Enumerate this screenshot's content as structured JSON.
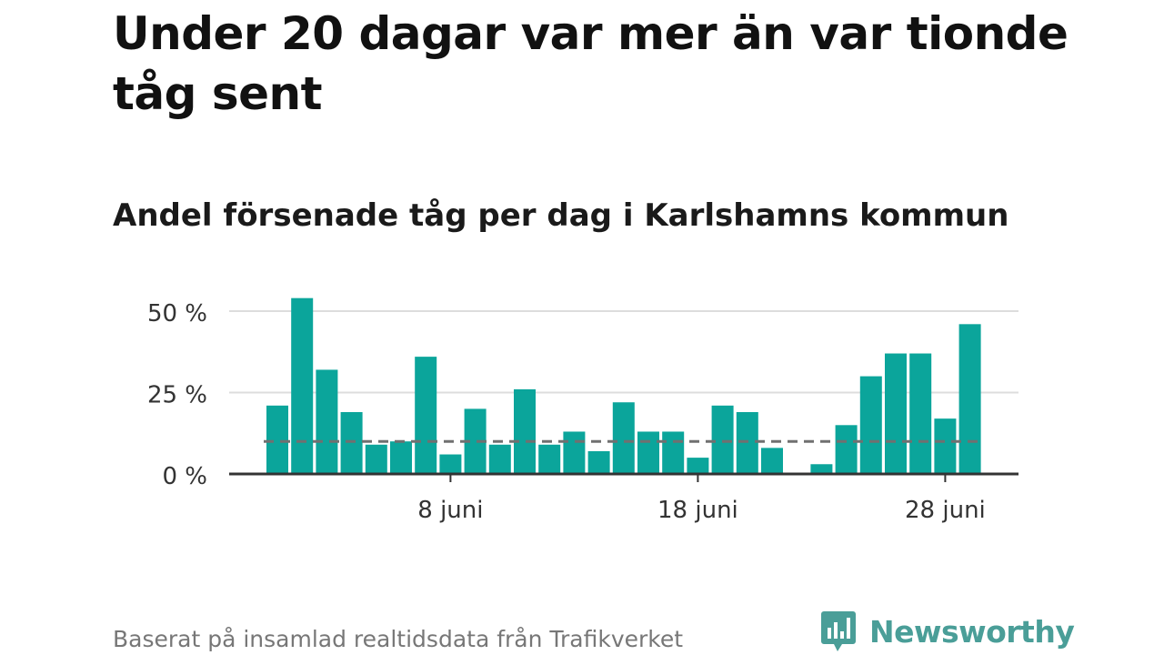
{
  "title": "Under 20 dagar var mer än var tionde tåg sent",
  "subtitle": "Andel försenade tåg per dag i Karlshamns kommun",
  "footer": "Baserat på insamlad realtidsdata från Trafikverket",
  "brand": {
    "name": "Newsworthy",
    "logo_icon": "bar-chart-speech-bubble-icon"
  },
  "colors": {
    "bar": "#0ba59b",
    "reference_line": "#707070",
    "gridline": "#dddddd",
    "axis": "#333333",
    "brand": "#4a9e98"
  },
  "chart_data": {
    "type": "bar",
    "x_unit": "day of June",
    "x": [
      1,
      2,
      3,
      4,
      5,
      6,
      7,
      8,
      9,
      10,
      11,
      12,
      13,
      14,
      15,
      16,
      17,
      18,
      19,
      20,
      21,
      22,
      23,
      24,
      25,
      26,
      27,
      28,
      29
    ],
    "values": [
      21,
      54,
      32,
      19,
      9,
      10,
      36,
      6,
      20,
      9,
      26,
      9,
      13,
      7,
      22,
      13,
      13,
      5,
      21,
      19,
      8,
      null,
      3,
      15,
      30,
      37,
      37,
      17,
      46
    ],
    "reference_line": 10,
    "ylim": [
      0,
      57
    ],
    "yticks": [
      {
        "value": 0,
        "label": "0 %"
      },
      {
        "value": 25,
        "label": "25 %"
      },
      {
        "value": 50,
        "label": "50 %"
      }
    ],
    "xticks": [
      {
        "value": 8,
        "label": "8 juni"
      },
      {
        "value": 18,
        "label": "18 juni"
      },
      {
        "value": 28,
        "label": "28 juni"
      }
    ],
    "grid": true,
    "legend": "none"
  }
}
